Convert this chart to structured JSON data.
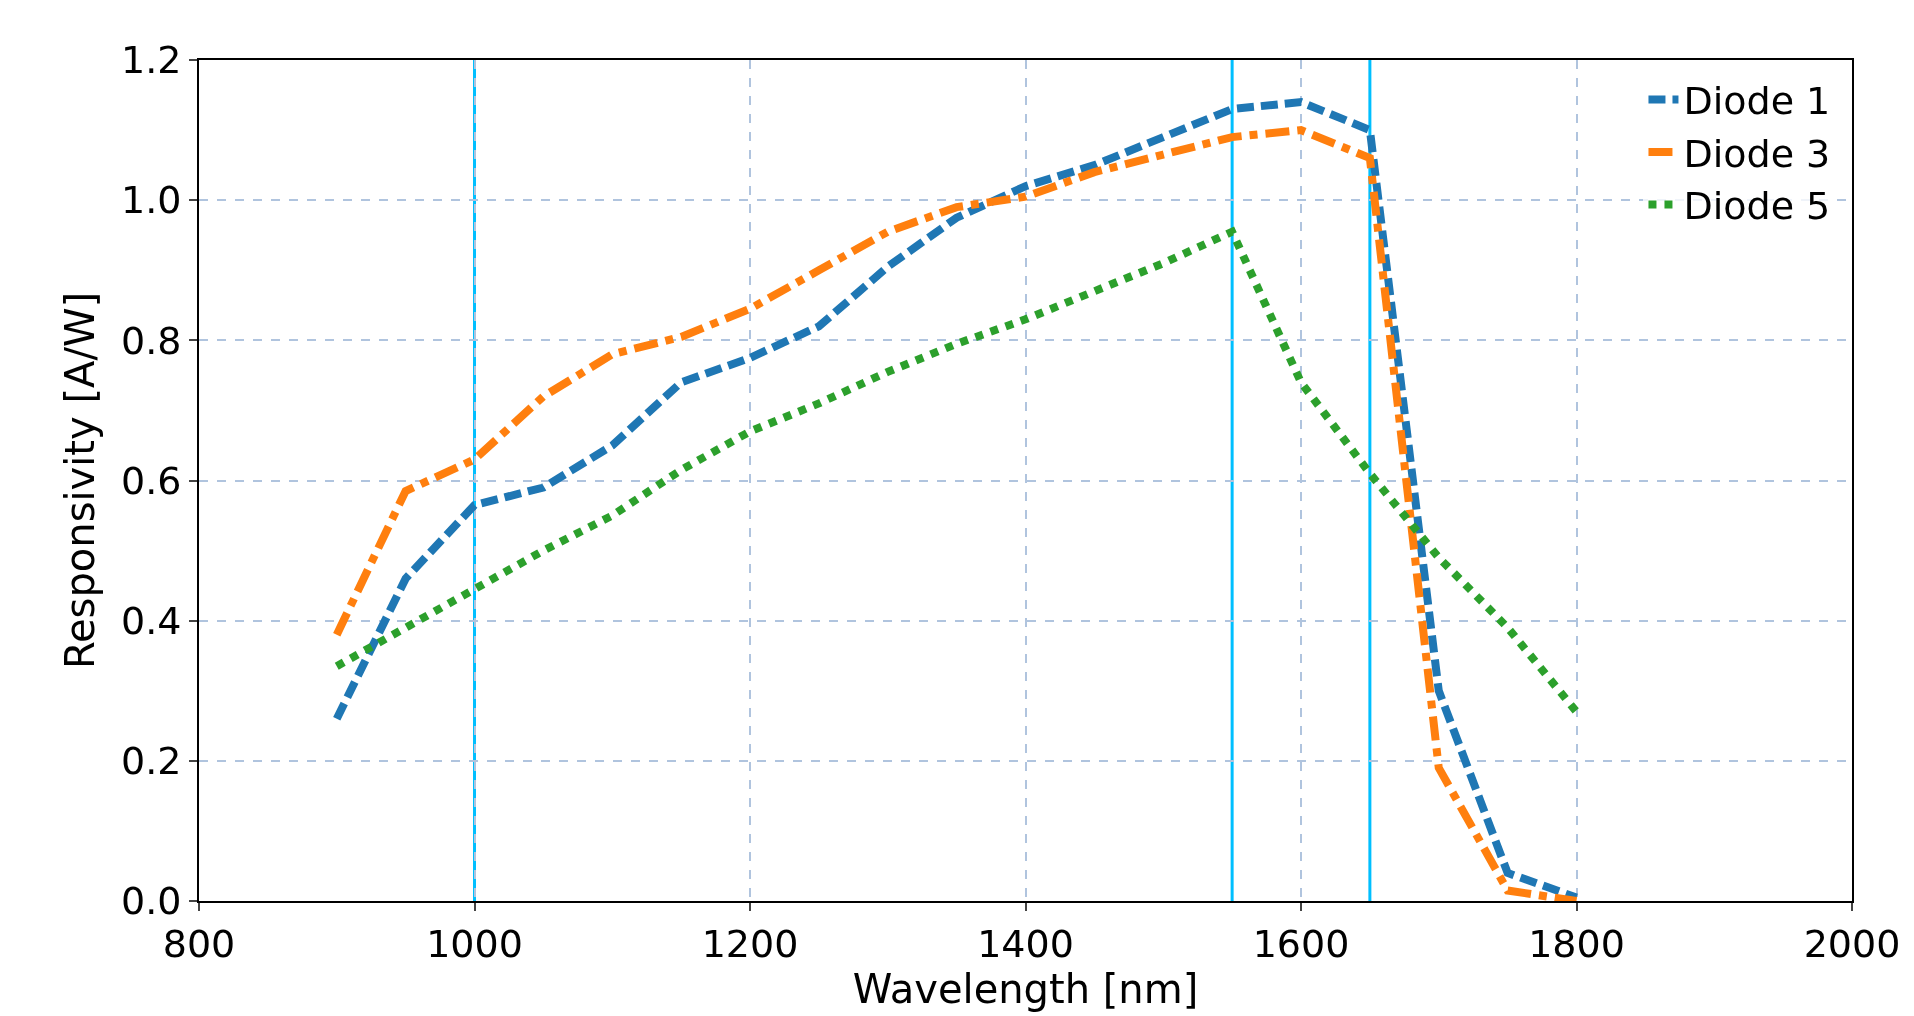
{
  "chart_data": {
    "type": "line",
    "xlabel": "Wavelength [nm]",
    "ylabel": "Responsivity [A/W]",
    "x": [
      900,
      950,
      1000,
      1050,
      1100,
      1150,
      1200,
      1250,
      1300,
      1350,
      1400,
      1450,
      1500,
      1550,
      1600,
      1650,
      1700,
      1750,
      1800
    ],
    "series": [
      {
        "name": "Diode 1",
        "color": "#1f77b4",
        "line_style": "dashed",
        "values": [
          0.26,
          0.46,
          0.565,
          0.59,
          0.65,
          0.74,
          0.775,
          0.82,
          0.905,
          0.975,
          1.02,
          1.05,
          1.09,
          1.13,
          1.14,
          1.1,
          0.3,
          0.04,
          0.005
        ]
      },
      {
        "name": "Diode 3",
        "color": "#ff7f0e",
        "line_style": "dashdot",
        "values": [
          0.38,
          0.585,
          0.63,
          0.72,
          0.78,
          0.805,
          0.845,
          0.9,
          0.955,
          0.99,
          1.005,
          1.04,
          1.065,
          1.09,
          1.1,
          1.06,
          0.19,
          0.015,
          0.0
        ]
      },
      {
        "name": "Diode 5",
        "color": "#2ca02c",
        "line_style": "dotted",
        "values": [
          0.335,
          0.39,
          0.445,
          0.5,
          0.55,
          0.615,
          0.67,
          0.71,
          0.755,
          0.795,
          0.83,
          0.87,
          0.91,
          0.955,
          0.74,
          0.61,
          0.49,
          0.39,
          0.27
        ]
      }
    ],
    "xlim": [
      800,
      2000
    ],
    "xticks": [
      800,
      1000,
      1200,
      1400,
      1600,
      1800,
      2000
    ],
    "ylim": [
      0,
      1.2
    ],
    "yticks": [
      {
        "value": 0,
        "label": "0.0"
      },
      0.2,
      0.4,
      0.6,
      0.8,
      {
        "value": 1,
        "label": "1.0"
      },
      1.2
    ],
    "ref_lines": [
      {
        "axis": "x",
        "value": 1000,
        "color": "#00bfff"
      },
      {
        "axis": "x",
        "value": 1550,
        "color": "#00bfff"
      },
      {
        "axis": "x",
        "value": 1650,
        "color": "#00bfff"
      }
    ],
    "grid": true,
    "legend": "top right",
    "marker": "none"
  }
}
